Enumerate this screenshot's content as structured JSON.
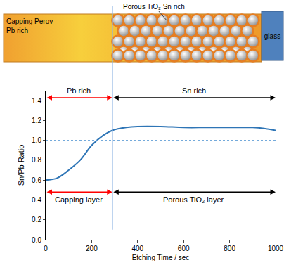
{
  "chart_data": {
    "type": "line",
    "x": [
      0,
      50,
      100,
      150,
      200,
      250,
      290,
      350,
      400,
      500,
      600,
      700,
      800,
      900,
      950,
      1000
    ],
    "values": [
      0.6,
      0.62,
      0.7,
      0.8,
      0.95,
      1.05,
      1.1,
      1.13,
      1.14,
      1.14,
      1.13,
      1.13,
      1.13,
      1.13,
      1.12,
      1.1
    ],
    "color": "#2e75b6",
    "xlim": [
      0,
      1000
    ],
    "xticks": [
      0,
      200,
      400,
      600,
      800,
      1000
    ],
    "ylim": [
      0,
      1.5
    ],
    "yticks": [
      {
        "value": 0,
        "label": "0.0"
      },
      {
        "value": 0.2,
        "label": "0.2"
      },
      {
        "value": 0.4,
        "label": "0.4"
      },
      {
        "value": 0.6,
        "label": "0.6"
      },
      {
        "value": 0.8,
        "label": "0.8"
      },
      {
        "value": 1.0,
        "label": "1.0"
      },
      {
        "value": 1.2,
        "label": "1.2"
      },
      {
        "value": 1.4,
        "label": "1.4"
      }
    ],
    "x_label": "Etching Time / sec",
    "y_label": "Sn/Pb Ratio",
    "grid": false,
    "reference_line": {
      "y": 1.0,
      "color": "#5b9bd5",
      "line_style": "dot"
    },
    "divider": {
      "x": 290,
      "y_from": 0.1,
      "color": "#8eb4e3"
    },
    "ranges": [
      {
        "label": "Pb rich",
        "from": 0,
        "to": 290,
        "y": 1.43,
        "color": "#ff0000"
      },
      {
        "label": "Sn rich",
        "from": 290,
        "to": 1000,
        "y": 1.43,
        "color": "#000000"
      },
      {
        "label": "Capping layer",
        "from": 0,
        "to": 290,
        "y": 0.48,
        "color": "#ff0000"
      },
      {
        "label": "Porous TiO₂ layer",
        "from": 290,
        "to": 1000,
        "y": 0.48,
        "color": "#000000"
      }
    ]
  },
  "diagram": {
    "capping_label": [
      "Capping Perov",
      "Pb rich"
    ],
    "porous_label": "Porous TiO₂ Sn rich",
    "substrate_label": "glass"
  }
}
